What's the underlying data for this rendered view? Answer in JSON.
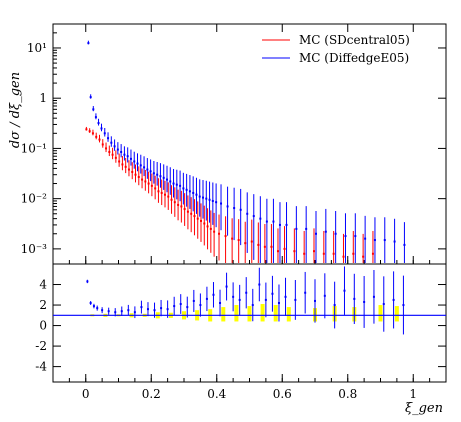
{
  "chart_data": {
    "type": "scatter",
    "title": "",
    "xlabel": "ξ_gen",
    "ylabel": "dσ / dξ_gen",
    "xlim": [
      -0.1,
      1.1
    ],
    "x_ticks": [
      0,
      0.2,
      0.4,
      0.6,
      0.8,
      1
    ],
    "x_tick_labels": [
      "0",
      "0.2",
      "0.4",
      "0.6",
      "0.8",
      "1"
    ],
    "legend": {
      "placement": "top-right"
    },
    "main_panel": {
      "y_scale": "log",
      "ylim": [
        0.0005,
        30
      ],
      "y_tick_labels": [
        "10⁻³",
        "10⁻²",
        "10⁻¹",
        "1",
        "10¹"
      ],
      "y_tick_values": [
        0.001,
        0.01,
        0.1,
        1,
        10
      ],
      "series": [
        {
          "name": "MC (SDcentral05)",
          "color": "#ff0000",
          "points": [
            [
              0.005,
              0.24
            ],
            [
              0.015,
              0.22
            ],
            [
              0.025,
              0.2
            ],
            [
              0.035,
              0.17
            ],
            [
              0.045,
              0.15
            ],
            [
              0.055,
              0.12
            ],
            [
              0.065,
              0.1
            ],
            [
              0.075,
              0.085
            ],
            [
              0.085,
              0.075
            ],
            [
              0.095,
              0.065
            ],
            [
              0.105,
              0.055
            ],
            [
              0.115,
              0.048
            ],
            [
              0.125,
              0.043
            ],
            [
              0.135,
              0.038
            ],
            [
              0.145,
              0.034
            ],
            [
              0.155,
              0.03
            ],
            [
              0.165,
              0.027
            ],
            [
              0.175,
              0.024
            ],
            [
              0.185,
              0.022
            ],
            [
              0.195,
              0.02
            ],
            [
              0.205,
              0.018
            ],
            [
              0.215,
              0.016
            ],
            [
              0.225,
              0.014
            ],
            [
              0.235,
              0.013
            ],
            [
              0.245,
              0.012
            ],
            [
              0.255,
              0.011
            ],
            [
              0.265,
              0.0095
            ],
            [
              0.275,
              0.0085
            ],
            [
              0.285,
              0.0075
            ],
            [
              0.295,
              0.007
            ],
            [
              0.305,
              0.0062
            ],
            [
              0.315,
              0.0055
            ],
            [
              0.325,
              0.005
            ],
            [
              0.335,
              0.0045
            ],
            [
              0.345,
              0.004
            ],
            [
              0.355,
              0.0036
            ],
            [
              0.365,
              0.0032
            ],
            [
              0.375,
              0.0028
            ],
            [
              0.385,
              0.0025
            ],
            [
              0.395,
              0.0022
            ],
            [
              0.41,
              0.002
            ],
            [
              0.43,
              0.0018
            ],
            [
              0.45,
              0.0016
            ],
            [
              0.47,
              0.0015
            ],
            [
              0.49,
              0.0013
            ],
            [
              0.51,
              0.0014
            ],
            [
              0.53,
              0.0012
            ],
            [
              0.55,
              0.0011
            ],
            [
              0.57,
              0.0011
            ],
            [
              0.59,
              0.0009
            ],
            [
              0.61,
              0.001
            ],
            [
              0.64,
              0.0009
            ],
            [
              0.67,
              0.0008
            ],
            [
              0.7,
              0.0009
            ],
            [
              0.73,
              0.0008
            ],
            [
              0.76,
              0.0008
            ],
            [
              0.79,
              0.0007
            ],
            [
              0.82,
              0.0008
            ],
            [
              0.85,
              0.0007
            ],
            [
              0.88,
              0.0008
            ]
          ]
        },
        {
          "name": "MC (DiffedgeE05)",
          "color": "#0000ff",
          "points": [
            [
              0.005,
              12.5
            ],
            [
              0.012,
              1.05
            ],
            [
              0.02,
              0.6
            ],
            [
              0.028,
              0.42
            ],
            [
              0.036,
              0.32
            ],
            [
              0.045,
              0.25
            ],
            [
              0.055,
              0.2
            ],
            [
              0.065,
              0.16
            ],
            [
              0.075,
              0.13
            ],
            [
              0.085,
              0.11
            ],
            [
              0.095,
              0.095
            ],
            [
              0.105,
              0.085
            ],
            [
              0.115,
              0.075
            ],
            [
              0.125,
              0.07
            ],
            [
              0.135,
              0.062
            ],
            [
              0.145,
              0.055
            ],
            [
              0.155,
              0.05
            ],
            [
              0.165,
              0.046
            ],
            [
              0.175,
              0.042
            ],
            [
              0.185,
              0.038
            ],
            [
              0.195,
              0.035
            ],
            [
              0.205,
              0.032
            ],
            [
              0.215,
              0.03
            ],
            [
              0.225,
              0.028
            ],
            [
              0.235,
              0.026
            ],
            [
              0.245,
              0.024
            ],
            [
              0.255,
              0.022
            ],
            [
              0.265,
              0.02
            ],
            [
              0.275,
              0.019
            ],
            [
              0.285,
              0.018
            ],
            [
              0.295,
              0.016
            ],
            [
              0.305,
              0.015
            ],
            [
              0.315,
              0.014
            ],
            [
              0.325,
              0.013
            ],
            [
              0.335,
              0.012
            ],
            [
              0.345,
              0.011
            ],
            [
              0.355,
              0.0105
            ],
            [
              0.365,
              0.01
            ],
            [
              0.375,
              0.0095
            ],
            [
              0.385,
              0.009
            ],
            [
              0.395,
              0.0085
            ],
            [
              0.41,
              0.008
            ],
            [
              0.43,
              0.007
            ],
            [
              0.45,
              0.0065
            ],
            [
              0.47,
              0.006
            ],
            [
              0.49,
              0.005
            ],
            [
              0.51,
              0.0045
            ],
            [
              0.53,
              0.004
            ],
            [
              0.55,
              0.0035
            ],
            [
              0.57,
              0.0035
            ],
            [
              0.59,
              0.003
            ],
            [
              0.61,
              0.003
            ],
            [
              0.64,
              0.0025
            ],
            [
              0.67,
              0.0025
            ],
            [
              0.7,
              0.002
            ],
            [
              0.73,
              0.0022
            ],
            [
              0.76,
              0.002
            ],
            [
              0.79,
              0.0018
            ],
            [
              0.82,
              0.0018
            ],
            [
              0.85,
              0.0016
            ],
            [
              0.88,
              0.0015
            ],
            [
              0.91,
              0.0015
            ],
            [
              0.94,
              0.0014
            ],
            [
              0.97,
              0.0012
            ]
          ]
        }
      ]
    },
    "ratio_panel": {
      "ylim": [
        -5.5,
        6
      ],
      "y_ticks": [
        -4,
        -2,
        0,
        2,
        4
      ],
      "y_tick_labels": [
        "-4",
        "-2",
        "0",
        "2",
        "4"
      ],
      "reference_line": 1,
      "band_color": "#ffff00",
      "band": [
        [
          0.02,
          1.1
        ],
        [
          0.06,
          1.15
        ],
        [
          0.1,
          1.1
        ],
        [
          0.14,
          1.2
        ],
        [
          0.18,
          1.15
        ],
        [
          0.22,
          1.3
        ],
        [
          0.26,
          1.25
        ],
        [
          0.3,
          1.4
        ],
        [
          0.34,
          1.5
        ],
        [
          0.38,
          1.6
        ],
        [
          0.42,
          1.8
        ],
        [
          0.46,
          2.0
        ],
        [
          0.5,
          1.9
        ],
        [
          0.54,
          2.1
        ],
        [
          0.58,
          2.0
        ],
        [
          0.62,
          1.8
        ],
        [
          0.7,
          1.7
        ],
        [
          0.76,
          1.9
        ],
        [
          0.82,
          1.8
        ],
        [
          0.9,
          2.0
        ],
        [
          0.95,
          1.9
        ]
      ],
      "ratio_points": [
        [
          0.005,
          4.3
        ],
        [
          0.015,
          2.2
        ],
        [
          0.025,
          1.9
        ],
        [
          0.035,
          1.7
        ],
        [
          0.05,
          1.5
        ],
        [
          0.07,
          1.4
        ],
        [
          0.09,
          1.3
        ],
        [
          0.11,
          1.4
        ],
        [
          0.13,
          1.5
        ],
        [
          0.15,
          1.3
        ],
        [
          0.17,
          1.8
        ],
        [
          0.19,
          1.6
        ],
        [
          0.21,
          1.5
        ],
        [
          0.23,
          1.7
        ],
        [
          0.25,
          1.6
        ],
        [
          0.27,
          1.9
        ],
        [
          0.29,
          2.1
        ],
        [
          0.31,
          1.8
        ],
        [
          0.33,
          2.4
        ],
        [
          0.35,
          2.0
        ],
        [
          0.37,
          2.6
        ],
        [
          0.39,
          3.0
        ],
        [
          0.41,
          2.2
        ],
        [
          0.43,
          3.8
        ],
        [
          0.45,
          2.8
        ],
        [
          0.47,
          2.5
        ],
        [
          0.49,
          3.2
        ],
        [
          0.51,
          2.0
        ],
        [
          0.53,
          4.0
        ],
        [
          0.55,
          2.5
        ],
        [
          0.57,
          3.1
        ],
        [
          0.59,
          2.2
        ],
        [
          0.61,
          2.8
        ],
        [
          0.64,
          2.5
        ],
        [
          0.67,
          3.2
        ],
        [
          0.7,
          2.4
        ],
        [
          0.73,
          2.9
        ],
        [
          0.76,
          2.0
        ],
        [
          0.79,
          3.4
        ],
        [
          0.82,
          2.6
        ],
        [
          0.85,
          2.3
        ],
        [
          0.88,
          2.8
        ],
        [
          0.91,
          2.1
        ],
        [
          0.94,
          2.5
        ],
        [
          0.97,
          2.0
        ]
      ]
    }
  }
}
